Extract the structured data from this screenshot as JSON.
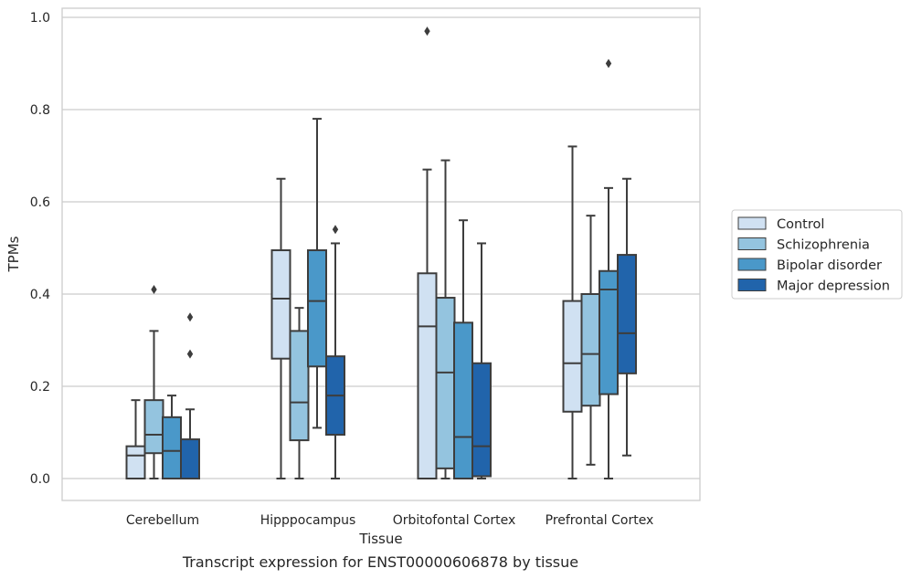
{
  "caption": "Transcript expression for ENST00000606878 by tissue",
  "chart_data": {
    "type": "box",
    "xlabel": "Tissue",
    "ylabel": "TPMs",
    "ylim": [
      -0.045,
      1.02
    ],
    "yticks": [
      0.0,
      0.2,
      0.4,
      0.6,
      0.8,
      1.0
    ],
    "ytick_labels": [
      "0.0",
      "0.2",
      "0.4",
      "0.6",
      "0.8",
      "1.0"
    ],
    "grid": "horizontal",
    "legend_position": "right",
    "categories": [
      "Cerebellum",
      "Hipppocampus",
      "Orbitofontal Cortex",
      "Prefrontal Cortex"
    ],
    "series": [
      {
        "name": "Control",
        "color": "#d0e1f2",
        "boxes": [
          {
            "whislo": 0.0,
            "q1": 0.0,
            "med": 0.05,
            "q3": 0.07,
            "whishi": 0.17,
            "fliers": []
          },
          {
            "whislo": 0.0,
            "q1": 0.26,
            "med": 0.39,
            "q3": 0.495,
            "whishi": 0.65,
            "fliers": []
          },
          {
            "whislo": 0.0,
            "q1": 0.0,
            "med": 0.33,
            "q3": 0.445,
            "whishi": 0.67,
            "fliers": [
              0.97
            ]
          },
          {
            "whislo": 0.0,
            "q1": 0.145,
            "med": 0.25,
            "q3": 0.385,
            "whishi": 0.72,
            "fliers": []
          }
        ]
      },
      {
        "name": "Schizophrenia",
        "color": "#94c4df",
        "boxes": [
          {
            "whislo": 0.0,
            "q1": 0.055,
            "med": 0.095,
            "q3": 0.17,
            "whishi": 0.32,
            "fliers": [
              0.41
            ]
          },
          {
            "whislo": 0.0,
            "q1": 0.083,
            "med": 0.165,
            "q3": 0.32,
            "whishi": 0.37,
            "fliers": []
          },
          {
            "whislo": 0.0,
            "q1": 0.022,
            "med": 0.23,
            "q3": 0.392,
            "whishi": 0.69,
            "fliers": []
          },
          {
            "whislo": 0.03,
            "q1": 0.158,
            "med": 0.27,
            "q3": 0.4,
            "whishi": 0.57,
            "fliers": []
          }
        ]
      },
      {
        "name": "Bipolar disorder",
        "color": "#4a98c9",
        "boxes": [
          {
            "whislo": 0.0,
            "q1": 0.0,
            "med": 0.06,
            "q3": 0.133,
            "whishi": 0.18,
            "fliers": []
          },
          {
            "whislo": 0.11,
            "q1": 0.243,
            "med": 0.385,
            "q3": 0.495,
            "whishi": 0.78,
            "fliers": []
          },
          {
            "whislo": 0.0,
            "q1": 0.0,
            "med": 0.09,
            "q3": 0.338,
            "whishi": 0.56,
            "fliers": []
          },
          {
            "whislo": 0.0,
            "q1": 0.183,
            "med": 0.41,
            "q3": 0.45,
            "whishi": 0.63,
            "fliers": [
              0.9
            ]
          }
        ]
      },
      {
        "name": "Major depression",
        "color": "#2164ab",
        "boxes": [
          {
            "whislo": 0.0,
            "q1": 0.0,
            "med": 0.0,
            "q3": 0.085,
            "whishi": 0.15,
            "fliers": [
              0.27,
              0.35
            ]
          },
          {
            "whislo": 0.0,
            "q1": 0.095,
            "med": 0.18,
            "q3": 0.265,
            "whishi": 0.51,
            "fliers": [
              0.54
            ]
          },
          {
            "whislo": 0.0,
            "q1": 0.005,
            "med": 0.07,
            "q3": 0.25,
            "whishi": 0.51,
            "fliers": []
          },
          {
            "whislo": 0.05,
            "q1": 0.228,
            "med": 0.315,
            "q3": 0.485,
            "whishi": 0.65,
            "fliers": []
          }
        ]
      }
    ]
  }
}
